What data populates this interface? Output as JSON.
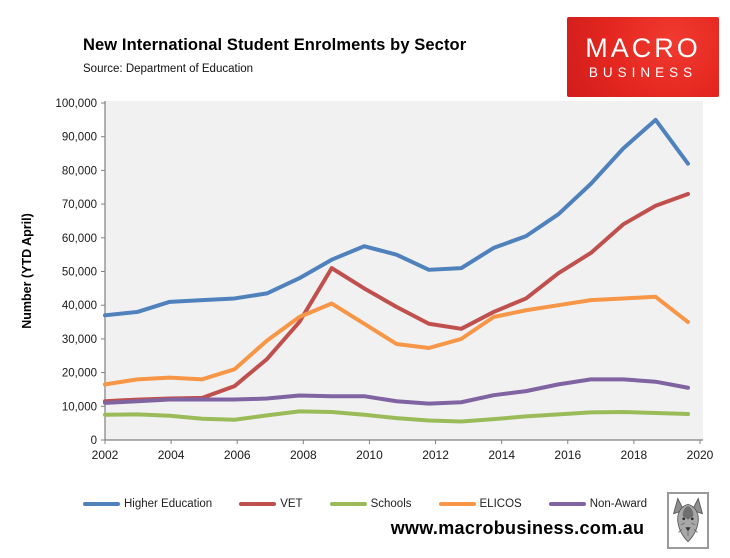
{
  "header": {
    "title": "New International Student Enrolments by Sector",
    "source": "Source: Department of Education",
    "logo": {
      "line1": "MACRO",
      "line2": "BUSINESS",
      "bg_color": "#e3261f",
      "text_color": "#ffffff"
    }
  },
  "chart_data": {
    "type": "line",
    "title": "New International Student Enrolments by Sector",
    "xlabel": "",
    "ylabel": "Number (YTD April)",
    "ylim": [
      0,
      100000
    ],
    "y_tick_step": 10000,
    "y_tick_labels": [
      "0",
      "10,000",
      "20,000",
      "30,000",
      "40,000",
      "50,000",
      "60,000",
      "70,000",
      "80,000",
      "90,000",
      "100,000"
    ],
    "x": [
      2002,
      2003,
      2004,
      2005,
      2006,
      2007,
      2008,
      2009,
      2010,
      2011,
      2012,
      2013,
      2014,
      2015,
      2016,
      2017,
      2018,
      2019,
      2020
    ],
    "x_tick_labels": [
      "2002",
      "2004",
      "2006",
      "2008",
      "2010",
      "2012",
      "2014",
      "2016",
      "2018",
      "2020"
    ],
    "grid": false,
    "legend_position": "bottom",
    "plot_bg": "#f1f1f2",
    "axis_color": "#808080",
    "series": [
      {
        "name": "Higher Education",
        "color": "#4F81BD",
        "values": [
          37000,
          38000,
          41000,
          41500,
          42000,
          43500,
          48000,
          53500,
          57500,
          55000,
          50500,
          51000,
          57000,
          60500,
          67000,
          76000,
          86500,
          95000,
          82000
        ]
      },
      {
        "name": "VET",
        "color": "#C0504D",
        "values": [
          11500,
          12000,
          12300,
          12500,
          16000,
          24000,
          35000,
          51000,
          45000,
          39500,
          34500,
          33000,
          38000,
          42000,
          49500,
          55500,
          64000,
          69500,
          73000
        ]
      },
      {
        "name": "Schools",
        "color": "#9BBB59",
        "values": [
          7500,
          7600,
          7200,
          6300,
          6000,
          7300,
          8500,
          8300,
          7500,
          6500,
          5800,
          5500,
          6200,
          7000,
          7600,
          8200,
          8300,
          8000,
          7700
        ]
      },
      {
        "name": "ELICOS",
        "color": "#F79646",
        "values": [
          16500,
          18000,
          18500,
          18000,
          21000,
          29500,
          36500,
          40500,
          34500,
          28500,
          27300,
          30000,
          36500,
          38500,
          40000,
          41500,
          42000,
          42500,
          35000
        ]
      },
      {
        "name": "Non-Award",
        "color": "#8064A2",
        "values": [
          11000,
          11500,
          12000,
          12000,
          12000,
          12300,
          13200,
          13000,
          13000,
          11500,
          10800,
          11200,
          13300,
          14500,
          16500,
          18000,
          18000,
          17300,
          15500
        ]
      }
    ]
  },
  "footer": {
    "website": "www.macrobusiness.com.au"
  }
}
